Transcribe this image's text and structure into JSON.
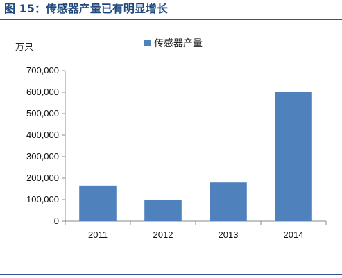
{
  "title": "图 15：传感器产量已有明显增长",
  "chart_data": {
    "type": "bar",
    "title": "",
    "unit_label": "万只",
    "xlabel": "",
    "ylabel": "",
    "categories": [
      "2011",
      "2012",
      "2013",
      "2014"
    ],
    "series": [
      {
        "name": "传感器产量",
        "values": [
          165000,
          100000,
          180000,
          603000
        ]
      }
    ],
    "ylim": [
      0,
      700000
    ],
    "yticks": [
      "0",
      "100,000",
      "200,000",
      "300,000",
      "400,000",
      "500,000",
      "600,000",
      "700,000"
    ],
    "ytick_values": [
      0,
      100000,
      200000,
      300000,
      400000,
      500000,
      600000,
      700000
    ],
    "grid": false,
    "legend_position": "top",
    "bar_color": "#4f81bd"
  }
}
